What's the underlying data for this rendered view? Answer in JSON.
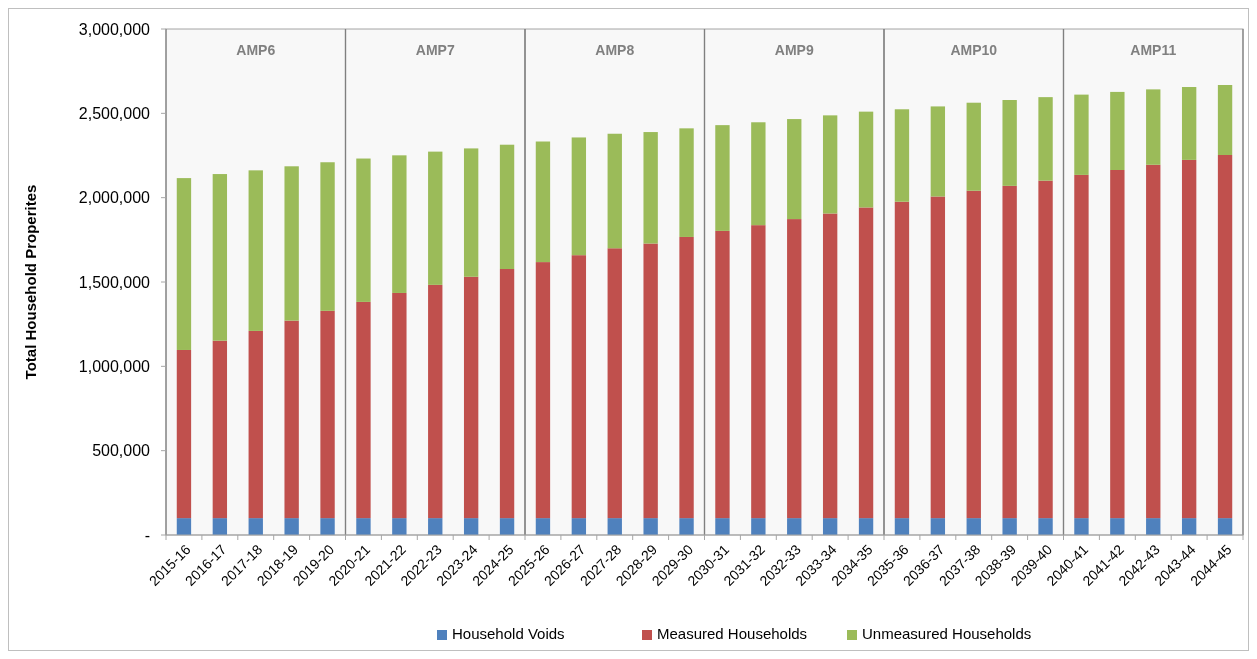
{
  "chart_data": {
    "type": "bar",
    "stacked": true,
    "ylabel": "Total Household Properites",
    "categories": [
      "2015-16",
      "2016-17",
      "2017-18",
      "2018-19",
      "2019-20",
      "2020-21",
      "2021-22",
      "2022-23",
      "2023-24",
      "2024-25",
      "2025-26",
      "2026-27",
      "2027-28",
      "2028-29",
      "2029-30",
      "2030-31",
      "2031-32",
      "2032-33",
      "2033-34",
      "2034-35",
      "2035-36",
      "2036-37",
      "2037-38",
      "2038-39",
      "2039-40",
      "2040-41",
      "2041-42",
      "2042-43",
      "2043-44",
      "2044-45"
    ],
    "series": [
      {
        "name": "Household Voids",
        "color": "#4f81bd",
        "values": [
          100000,
          100000,
          100000,
          100000,
          100000,
          100000,
          100000,
          100000,
          100000,
          100000,
          100000,
          100000,
          100000,
          100000,
          100000,
          100000,
          100000,
          100000,
          100000,
          100000,
          100000,
          100000,
          100000,
          100000,
          100000,
          100000,
          100000,
          100000,
          100000,
          100000
        ]
      },
      {
        "name": "Measured Households",
        "color": "#c0504d",
        "values": [
          997000,
          1052000,
          1110000,
          1171000,
          1229000,
          1282000,
          1335000,
          1383000,
          1431000,
          1477000,
          1518000,
          1559000,
          1600000,
          1628000,
          1667000,
          1703000,
          1737000,
          1773000,
          1806000,
          1842000,
          1876000,
          1907000,
          1941000,
          1970000,
          2001000,
          2035000,
          2064000,
          2095000,
          2124000,
          2153000
        ]
      },
      {
        "name": "Unmeasured Households",
        "color": "#9bbb59",
        "values": [
          1019000,
          988000,
          952000,
          915000,
          881000,
          850000,
          816000,
          790000,
          761000,
          737000,
          715000,
          698000,
          679000,
          661000,
          644000,
          627000,
          610000,
          593000,
          582000,
          568000,
          548000,
          534000,
          522000,
          509000,
          495000,
          476000,
          463000,
          447000,
          432000,
          415000
        ]
      }
    ],
    "ylim": [
      0,
      3000000
    ],
    "yticks": [
      {
        "value": 0,
        "label": "-"
      },
      {
        "value": 500000,
        "label": "500,000"
      },
      {
        "value": 1000000,
        "label": "1,000,000"
      },
      {
        "value": 1500000,
        "label": "1,500,000"
      },
      {
        "value": 2000000,
        "label": "2,000,000"
      },
      {
        "value": 2500000,
        "label": "2,500,000"
      },
      {
        "value": 3000000,
        "label": "3,000,000"
      }
    ],
    "bands": [
      {
        "axis": "x",
        "from": "2015-16",
        "to": "2019-20",
        "label": "AMP6",
        "color": "#808080"
      },
      {
        "axis": "x",
        "from": "2020-21",
        "to": "2024-25",
        "label": "AMP7",
        "color": "#808080"
      },
      {
        "axis": "x",
        "from": "2025-26",
        "to": "2029-30",
        "label": "AMP8",
        "color": "#808080"
      },
      {
        "axis": "x",
        "from": "2030-31",
        "to": "2034-35",
        "label": "AMP9",
        "color": "#808080"
      },
      {
        "axis": "x",
        "from": "2035-36",
        "to": "2039-40",
        "label": "AMP10",
        "color": "#808080"
      },
      {
        "axis": "x",
        "from": "2040-41",
        "to": "2044-45",
        "label": "AMP11",
        "color": "#808080"
      }
    ],
    "grid": false,
    "legend": "bottom"
  }
}
